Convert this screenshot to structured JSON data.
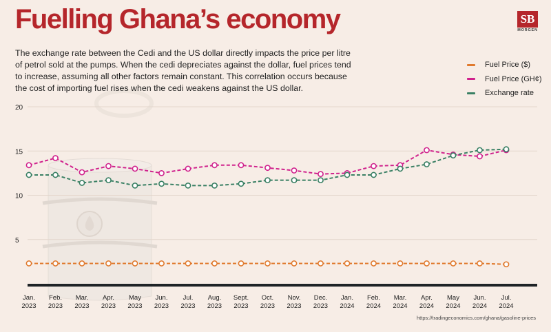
{
  "header": {
    "title": "Fuelling Ghana’s economy",
    "intro": "The exchange rate between the Cedi and the US dollar directly impacts the price per litre of petrol sold at the pumps. When the cedi depreciates against the dollar, fuel prices tend to increase, assuming all other factors remain constant. This correlation occurs because the cost of importing fuel rises when the cedi weakens against the US dollar."
  },
  "logo": {
    "mark": "SB",
    "wordmark": "MORGEN"
  },
  "source": "https://tradingeconomics.com/ghana/gasoline-prices",
  "colors": {
    "fuel_usd": "#e07a2e",
    "fuel_ghs": "#d0218c",
    "exchange": "#3a8064",
    "title": "#b5262b"
  },
  "chart_data": {
    "type": "line",
    "title": "",
    "xlabel": "",
    "ylabel": "",
    "ylim": [
      0,
      20
    ],
    "yticks": [
      5,
      10,
      15,
      20
    ],
    "x": [
      [
        "Jan.",
        "2023"
      ],
      [
        "Feb.",
        "2023"
      ],
      [
        "Mar.",
        "2023"
      ],
      [
        "Apr.",
        "2023"
      ],
      [
        "May",
        "2023"
      ],
      [
        "Jun.",
        "2023"
      ],
      [
        "Jul.",
        "2023"
      ],
      [
        "Aug.",
        "2023"
      ],
      [
        "Sept.",
        "2023"
      ],
      [
        "Oct.",
        "2023"
      ],
      [
        "Nov.",
        "2023"
      ],
      [
        "Dec.",
        "2023"
      ],
      [
        "Jan.",
        "2024"
      ],
      [
        "Feb.",
        "2024"
      ],
      [
        "Mar.",
        "2024"
      ],
      [
        "Apr.",
        "2024"
      ],
      [
        "May",
        "2024"
      ],
      [
        "Jun.",
        "2024"
      ],
      [
        "Jul.",
        "2024"
      ]
    ],
    "series": [
      {
        "name": "Fuel Price ($)",
        "color": "#e07a2e",
        "values": [
          2.3,
          2.3,
          2.3,
          2.3,
          2.3,
          2.3,
          2.3,
          2.3,
          2.3,
          2.3,
          2.3,
          2.3,
          2.3,
          2.3,
          2.3,
          2.3,
          2.3,
          2.3,
          2.2
        ]
      },
      {
        "name": "Fuel Price (GH¢)",
        "color": "#d0218c",
        "values": [
          13.4,
          14.2,
          12.6,
          13.3,
          13.0,
          12.5,
          13.0,
          13.4,
          13.4,
          13.1,
          12.8,
          12.4,
          12.5,
          13.3,
          13.4,
          15.1,
          14.6,
          14.4,
          15.1
        ]
      },
      {
        "name": "Exchange rate",
        "color": "#3a8064",
        "values": [
          12.3,
          12.3,
          11.4,
          11.7,
          11.1,
          11.3,
          11.1,
          11.1,
          11.3,
          11.7,
          11.7,
          11.7,
          12.3,
          12.3,
          13.0,
          13.5,
          14.5,
          15.1,
          15.2
        ]
      }
    ],
    "legend_position": "top-right"
  }
}
